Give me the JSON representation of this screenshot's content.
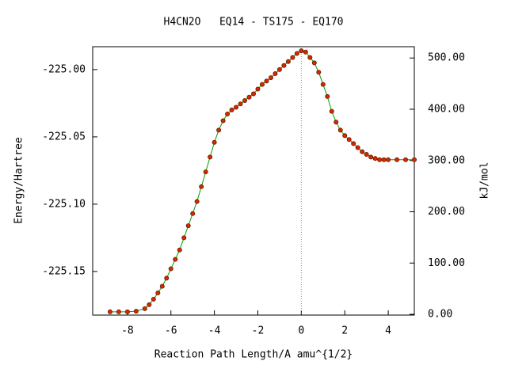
{
  "chart_data": {
    "type": "line",
    "title": "H4CN2O   EQ14 - TS175 - EQ170",
    "x_label": "Reaction Path Length/A amu^{1/2}",
    "y_label": "Energy/Hartree",
    "y2_label": "kJ/mol",
    "xlim": [
      -9.6,
      5.2
    ],
    "ylim": [
      -225.1824,
      -224.983
    ],
    "y2lim": [
      -1.5,
      522
    ],
    "xticks": [
      -8,
      -6,
      -4,
      -2,
      0,
      2,
      4
    ],
    "yticks": [
      {
        "value": -225.15,
        "label": "-225.15"
      },
      {
        "value": -225.1,
        "label": "-225.10"
      },
      {
        "value": -225.05,
        "label": "-225.05"
      },
      {
        "value": -225,
        "label": "-225.00"
      }
    ],
    "y2ticks": [
      {
        "value": 0,
        "label": "0.00"
      },
      {
        "value": 100,
        "label": "100.00"
      },
      {
        "value": 200,
        "label": "200.00"
      },
      {
        "value": 300,
        "label": "300.00"
      },
      {
        "value": 400,
        "label": "400.00"
      },
      {
        "value": 500,
        "label": "500.00"
      }
    ],
    "vline": 0,
    "x": [
      -8.8,
      -8.4,
      -8.0,
      -7.6,
      -7.2,
      -7.0,
      -6.8,
      -6.6,
      -6.4,
      -6.2,
      -6.0,
      -5.8,
      -5.6,
      -5.4,
      -5.2,
      -5.0,
      -4.8,
      -4.6,
      -4.4,
      -4.2,
      -4.0,
      -3.8,
      -3.6,
      -3.4,
      -3.2,
      -3.0,
      -2.8,
      -2.6,
      -2.4,
      -2.2,
      -2.0,
      -1.8,
      -1.6,
      -1.4,
      -1.2,
      -1.0,
      -0.8,
      -0.6,
      -0.4,
      -0.2,
      0,
      0.2,
      0.4,
      0.6,
      0.8,
      1.0,
      1.2,
      1.4,
      1.6,
      1.8,
      2.0,
      2.2,
      2.4,
      2.6,
      2.8,
      3.0,
      3.2,
      3.4,
      3.6,
      3.8,
      4.0,
      4.4,
      4.8,
      5.2
    ],
    "series": [
      {
        "marker_color": "#d42a00",
        "line_color": "#00a000",
        "values": [
          -225.18,
          -225.18,
          -225.18,
          -225.1795,
          -225.1776,
          -225.1747,
          -225.1706,
          -225.1659,
          -225.161,
          -225.155,
          -225.148,
          -225.141,
          -225.134,
          -225.125,
          -225.116,
          -225.107,
          -225.098,
          -225.087,
          -225.076,
          -225.065,
          -225.054,
          -225.045,
          -225.038,
          -225.033,
          -225.03,
          -225.028,
          -225.0255,
          -225.023,
          -225.0205,
          -225.018,
          -225.0145,
          -225.011,
          -225.0085,
          -225.006,
          -225.003,
          -225.0,
          -224.997,
          -224.994,
          -224.991,
          -224.988,
          -224.986,
          -224.987,
          -224.991,
          -224.995,
          -225.002,
          -225.011,
          -225.02,
          -225.031,
          -225.039,
          -225.045,
          -225.049,
          -225.052,
          -225.055,
          -225.058,
          -225.061,
          -225.063,
          -225.065,
          -225.066,
          -225.067,
          -225.067,
          -225.067,
          -225.067,
          -225.067,
          -225.067
        ]
      }
    ]
  }
}
